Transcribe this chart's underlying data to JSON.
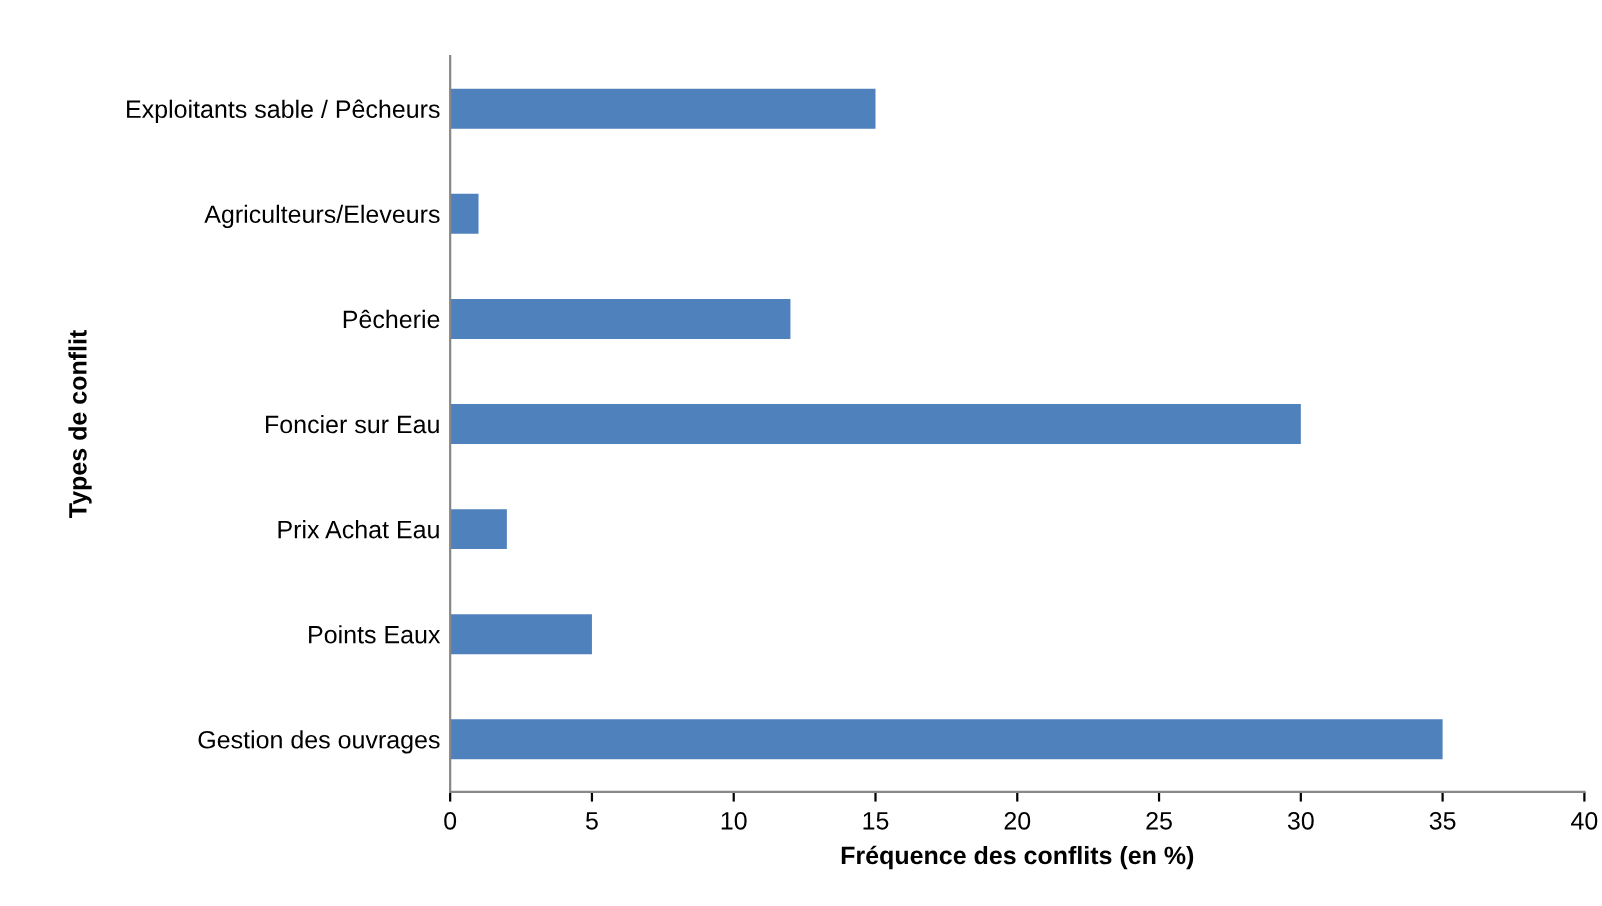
{
  "chart_data": {
    "type": "bar",
    "orientation": "horizontal",
    "categories": [
      "Exploitants sable / Pêcheurs",
      "Agriculteurs/Eleveurs",
      "Pêcherie",
      "Foncier sur Eau",
      "Prix Achat Eau",
      "Points Eaux",
      "Gestion des ouvrages"
    ],
    "values": [
      15,
      1,
      12,
      30,
      2,
      5,
      35
    ],
    "color": "#4f81bd",
    "xlim": [
      0,
      40
    ],
    "xticks": [
      0,
      5,
      10,
      15,
      20,
      25,
      30,
      35,
      40
    ],
    "xlabel": "Fréquence des conflits (en %)",
    "ylabel": "Types de conflit",
    "grid": false,
    "legend": false
  }
}
